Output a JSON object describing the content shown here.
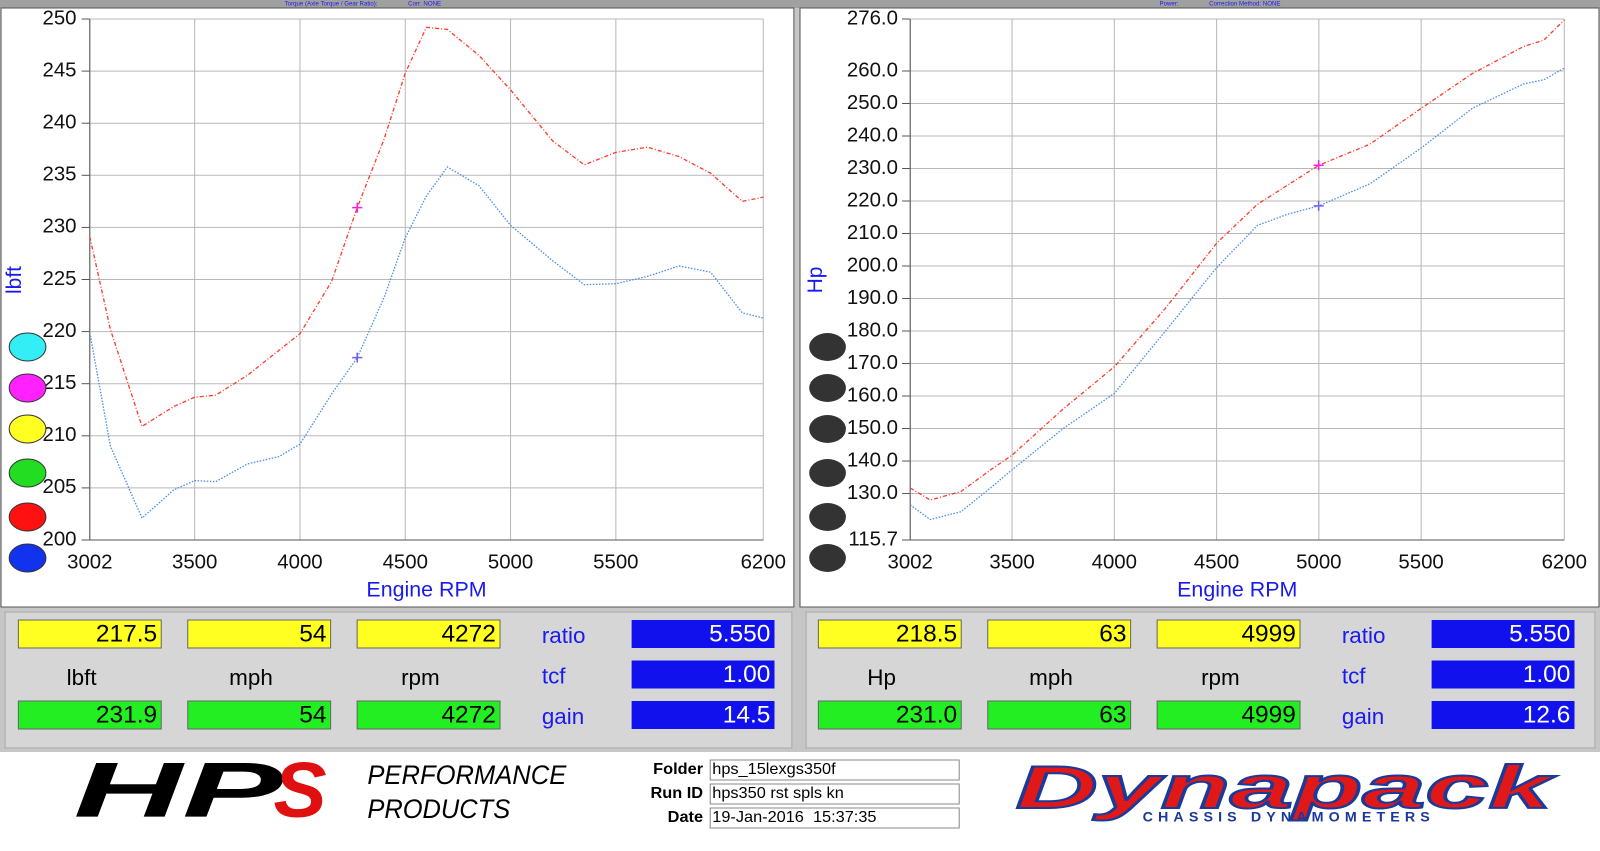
{
  "chart_data": [
    {
      "type": "line",
      "title": "Torque (Axle Torque / Gear Ratio):",
      "subtitle": "Corr: NONE",
      "y_label": "lbft",
      "x_label": "Engine RPM",
      "x": [
        3002,
        3100,
        3250,
        3400,
        3500,
        3600,
        3750,
        3900,
        4000,
        4150,
        4272,
        4400,
        4500,
        4600,
        4700,
        4850,
        5000,
        5200,
        5350,
        5500,
        5650,
        5800,
        5950,
        6100,
        6200
      ],
      "series": [
        {
          "color": "#ff3a2a",
          "values": [
            229.1,
            220.2,
            210.9,
            212.8,
            213.7,
            213.9,
            215.8,
            218.2,
            219.8,
            224.8,
            231.9,
            238.5,
            244.8,
            249.2,
            249.0,
            246.5,
            243.2,
            238.3,
            236.0,
            237.2,
            237.7,
            236.8,
            235.2,
            232.5,
            232.9
          ]
        },
        {
          "color": "#4d8fe8",
          "values": [
            219.9,
            209.0,
            202.1,
            204.8,
            205.7,
            205.6,
            207.3,
            208.0,
            209.2,
            214.0,
            217.5,
            223.3,
            229.0,
            233.0,
            235.8,
            234.0,
            230.2,
            226.8,
            224.5,
            224.6,
            225.3,
            226.3,
            225.7,
            221.8,
            221.3
          ]
        }
      ],
      "xlim": [
        3002,
        6200
      ],
      "xticks": [
        3002,
        3500,
        4000,
        4500,
        5000,
        5500,
        6200
      ],
      "ylim": [
        200,
        250
      ],
      "yticks": [
        200,
        205,
        210,
        215,
        220,
        225,
        230,
        235,
        240,
        245,
        250
      ],
      "grid": true
    },
    {
      "type": "line",
      "title": "Power:",
      "subtitle": "Correction Method: NONE",
      "y_label": "Hp",
      "x_label": "Engine RPM",
      "x": [
        3002,
        3100,
        3250,
        3400,
        3500,
        3750,
        4000,
        4250,
        4500,
        4700,
        4850,
        5000,
        5250,
        5500,
        5750,
        6000,
        6100,
        6200
      ],
      "series": [
        {
          "color": "#ff3a2a",
          "values": [
            131.7,
            128.0,
            130.6,
            137.5,
            141.8,
            156.0,
            169.0,
            187.0,
            207.0,
            219.0,
            225.0,
            231.0,
            237.5,
            248.5,
            259.2,
            267.5,
            269.5,
            275.7
          ]
        },
        {
          "color": "#4d8fe8",
          "values": [
            126.5,
            122.0,
            124.4,
            132.0,
            137.3,
            150.0,
            160.8,
            180.0,
            199.5,
            212.5,
            216.0,
            218.5,
            225.3,
            236.3,
            248.5,
            256.0,
            257.3,
            260.9
          ]
        }
      ],
      "xlim": [
        3002,
        6200
      ],
      "xticks": [
        3002,
        3500,
        4000,
        4500,
        5000,
        5500,
        6200
      ],
      "ylim": [
        115.7,
        276.0
      ],
      "yticks": [
        115.7,
        {
          "value": 130,
          "label": "130.0"
        },
        {
          "value": 140,
          "label": "140.0"
        },
        {
          "value": 150,
          "label": "150.0"
        },
        {
          "value": 160,
          "label": "160.0"
        },
        {
          "value": 170,
          "label": "170.0"
        },
        {
          "value": 180,
          "label": "180.0"
        },
        {
          "value": 190,
          "label": "190.0"
        },
        {
          "value": 200,
          "label": "200.0"
        },
        {
          "value": 210,
          "label": "210.0"
        },
        {
          "value": 220,
          "label": "220.0"
        },
        {
          "value": 230,
          "label": "230.0"
        },
        {
          "value": 240,
          "label": "240.0"
        },
        {
          "value": 250,
          "label": "250.0"
        },
        {
          "value": 260,
          "label": "260.0"
        },
        {
          "value": 276,
          "label": "276.0"
        }
      ],
      "grid": true
    }
  ],
  "readouts": [
    {
      "top": [
        "217.5",
        "54",
        "4272"
      ],
      "units": [
        "lbft",
        "mph",
        "rpm"
      ],
      "bottom": [
        "231.9",
        "54",
        "4272"
      ],
      "params": [
        {
          "label": "ratio",
          "value": "5.550"
        },
        {
          "label": "tcf",
          "value": "1.00"
        },
        {
          "label": "gain",
          "value": "14.5"
        }
      ]
    },
    {
      "top": [
        "218.5",
        "63",
        "4999"
      ],
      "units": [
        "Hp",
        "mph",
        "rpm"
      ],
      "bottom": [
        "231.0",
        "63",
        "4999"
      ],
      "params": [
        {
          "label": "ratio",
          "value": "5.550"
        },
        {
          "label": "tcf",
          "value": "1.00"
        },
        {
          "label": "gain",
          "value": "12.6"
        }
      ]
    }
  ],
  "footer": {
    "logo": {
      "mark": [
        "HP",
        "S"
      ],
      "line1": "PERFORMANCE",
      "line2": "PRODUCTS"
    },
    "info": [
      {
        "label": "Folder",
        "value": "hps_15lexgs350f"
      },
      {
        "label": "Run ID",
        "value": "hps350 rst spls kn"
      },
      {
        "label": "Date",
        "value": "19-Jan-2016  15:37:35"
      }
    ],
    "dyno": {
      "name": "Dynapack",
      "tagline": "CHASSIS DYNAMOMETERS"
    }
  }
}
